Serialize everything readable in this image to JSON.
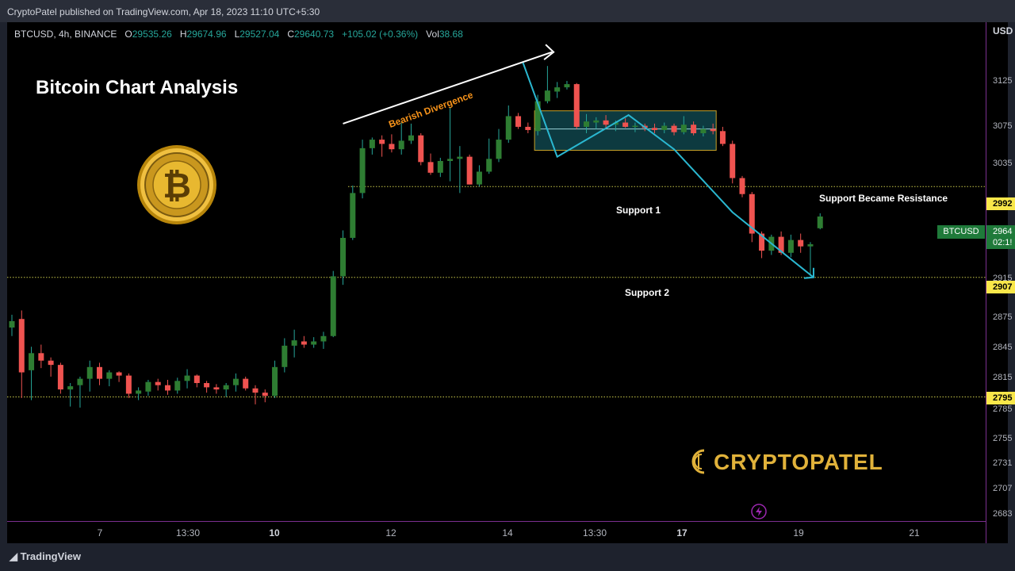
{
  "header": {
    "published": "CryptoPatel published on TradingView.com, Apr 18, 2023 11:10 UTC+5:30"
  },
  "symbol_line": {
    "symbol": "BTCUSD, 4h, BINANCE",
    "o_label": "O",
    "o": "29535.26",
    "h_label": "H",
    "h": "29674.96",
    "l_label": "L",
    "l": "29527.04",
    "c_label": "C",
    "c": "29640.73",
    "change": "+105.02 (+0.36%)",
    "vol_label": "Vol",
    "vol": "38.68"
  },
  "currency": "USD",
  "chart_title": "Bitcoin Chart Analysis",
  "annotations": {
    "bearish_divergence": "Bearish Divergence",
    "support_resistance": "Support Became Resistance",
    "support1": "Support 1",
    "support2": "Support 2"
  },
  "tags": {
    "ticker": "BTCUSD",
    "last_price": "2964",
    "countdown": "02:1!",
    "level_resistance": "2992",
    "level_support2": "2907",
    "level_base": "2795"
  },
  "brand": {
    "name": "CRYPTOPATEL",
    "platform": "TradingView"
  },
  "colors": {
    "up": "#26a69a",
    "up_body": "#2e7d32",
    "down": "#ef5350",
    "level_line": "#c8c84a",
    "trend": "#2ab7d0",
    "box_fill": "#0d3a40",
    "box_border": "#c9a227"
  },
  "chart_data": {
    "type": "candlestick",
    "title": "Bitcoin Chart Analysis",
    "symbol": "BTCUSD",
    "interval": "4h",
    "exchange": "BINANCE",
    "y_ticks": [
      "3125",
      "3075",
      "3035",
      "2915",
      "2875",
      "2845",
      "2815",
      "2785",
      "2755",
      "2731",
      "2707",
      "2683"
    ],
    "x_ticks": [
      {
        "label": "7",
        "bold": false
      },
      {
        "label": "13:30",
        "bold": false
      },
      {
        "label": "10",
        "bold": true
      },
      {
        "label": "12",
        "bold": false
      },
      {
        "label": "14",
        "bold": false
      },
      {
        "label": "13:30",
        "bold": false
      },
      {
        "label": "17",
        "bold": true
      },
      {
        "label": "19",
        "bold": false
      },
      {
        "label": "21",
        "bold": false
      }
    ],
    "levels": [
      29920,
      29070,
      27950
    ],
    "ylim": [
      26780,
      31460
    ],
    "candles": [
      [
        28600,
        28720,
        28520,
        28660
      ],
      [
        28680,
        28760,
        27940,
        28180
      ],
      [
        28200,
        28420,
        27920,
        28360
      ],
      [
        28360,
        28440,
        28220,
        28290
      ],
      [
        28290,
        28320,
        28140,
        28250
      ],
      [
        28250,
        28270,
        27980,
        28020
      ],
      [
        28020,
        28080,
        27860,
        28050
      ],
      [
        28060,
        28140,
        27850,
        28120
      ],
      [
        28120,
        28290,
        28000,
        28230
      ],
      [
        28230,
        28270,
        28060,
        28120
      ],
      [
        28120,
        28200,
        28050,
        28180
      ],
      [
        28180,
        28190,
        28090,
        28150
      ],
      [
        28150,
        28170,
        27940,
        27980
      ],
      [
        27980,
        28040,
        27920,
        28010
      ],
      [
        28000,
        28110,
        27960,
        28090
      ],
      [
        28090,
        28120,
        28010,
        28060
      ],
      [
        28060,
        28110,
        27970,
        28010
      ],
      [
        28010,
        28130,
        27980,
        28100
      ],
      [
        28100,
        28210,
        28030,
        28150
      ],
      [
        28150,
        28160,
        28040,
        28080
      ],
      [
        28080,
        28100,
        27990,
        28040
      ],
      [
        28040,
        28070,
        27980,
        28020
      ],
      [
        28020,
        28080,
        27950,
        28060
      ],
      [
        28060,
        28170,
        28000,
        28120
      ],
      [
        28120,
        28140,
        28010,
        28030
      ],
      [
        28030,
        28060,
        27880,
        27990
      ],
      [
        27990,
        28020,
        27900,
        27960
      ],
      [
        27960,
        28290,
        27940,
        28230
      ],
      [
        28230,
        28500,
        28180,
        28430
      ],
      [
        28430,
        28580,
        28320,
        28480
      ],
      [
        28470,
        28520,
        28410,
        28440
      ],
      [
        28440,
        28510,
        28410,
        28470
      ],
      [
        28470,
        28560,
        28400,
        28520
      ],
      [
        28520,
        29130,
        28510,
        29080
      ],
      [
        29080,
        29510,
        29000,
        29440
      ],
      [
        29440,
        29930,
        29420,
        29860
      ],
      [
        29860,
        30360,
        29810,
        30280
      ],
      [
        30280,
        30380,
        30220,
        30360
      ],
      [
        30360,
        30400,
        30200,
        30320
      ],
      [
        30320,
        30410,
        30240,
        30270
      ],
      [
        30270,
        30520,
        30220,
        30350
      ],
      [
        30350,
        30510,
        30320,
        30400
      ],
      [
        30400,
        30420,
        30120,
        30150
      ],
      [
        30150,
        30230,
        30030,
        30050
      ],
      [
        30050,
        30190,
        30010,
        30160
      ],
      [
        30160,
        30660,
        29970,
        30180
      ],
      [
        30180,
        30300,
        29860,
        30200
      ],
      [
        30200,
        30220,
        29940,
        29940
      ],
      [
        29940,
        30120,
        29920,
        30060
      ],
      [
        30060,
        30370,
        30040,
        30180
      ],
      [
        30180,
        30460,
        30150,
        30360
      ],
      [
        30360,
        30680,
        30330,
        30580
      ],
      [
        30580,
        30610,
        30460,
        30480
      ],
      [
        30480,
        30520,
        30420,
        30450
      ],
      [
        30440,
        30780,
        30400,
        30720
      ],
      [
        30720,
        31050,
        30700,
        30820
      ],
      [
        30810,
        30900,
        30750,
        30850
      ],
      [
        30850,
        30910,
        30830,
        30880
      ],
      [
        30880,
        30890,
        30460,
        30480
      ],
      [
        30480,
        30600,
        30420,
        30530
      ],
      [
        30520,
        30570,
        30460,
        30540
      ],
      [
        30540,
        30590,
        30470,
        30500
      ],
      [
        30500,
        30540,
        30440,
        30520
      ],
      [
        30520,
        30560,
        30470,
        30480
      ],
      [
        30480,
        30520,
        30430,
        30490
      ],
      [
        30490,
        30510,
        30440,
        30470
      ],
      [
        30470,
        30510,
        30420,
        30450
      ],
      [
        30450,
        30520,
        30420,
        30490
      ],
      [
        30490,
        30510,
        30400,
        30430
      ],
      [
        30430,
        30580,
        30410,
        30500
      ],
      [
        30500,
        30530,
        30400,
        30420
      ],
      [
        30420,
        30490,
        30390,
        30460
      ],
      [
        30460,
        30510,
        30410,
        30440
      ],
      [
        30440,
        30480,
        30300,
        30320
      ],
      [
        30320,
        30350,
        29950,
        30000
      ],
      [
        30000,
        30020,
        29820,
        29850
      ],
      [
        29850,
        29870,
        29400,
        29480
      ],
      [
        29480,
        29500,
        29250,
        29320
      ],
      [
        29320,
        29470,
        29280,
        29450
      ],
      [
        29450,
        29500,
        29280,
        29300
      ],
      [
        29300,
        29470,
        29260,
        29420
      ],
      [
        29420,
        29480,
        29300,
        29360
      ],
      [
        29360,
        29400,
        29080,
        29380
      ],
      [
        29530,
        29670,
        29520,
        29640
      ]
    ]
  }
}
